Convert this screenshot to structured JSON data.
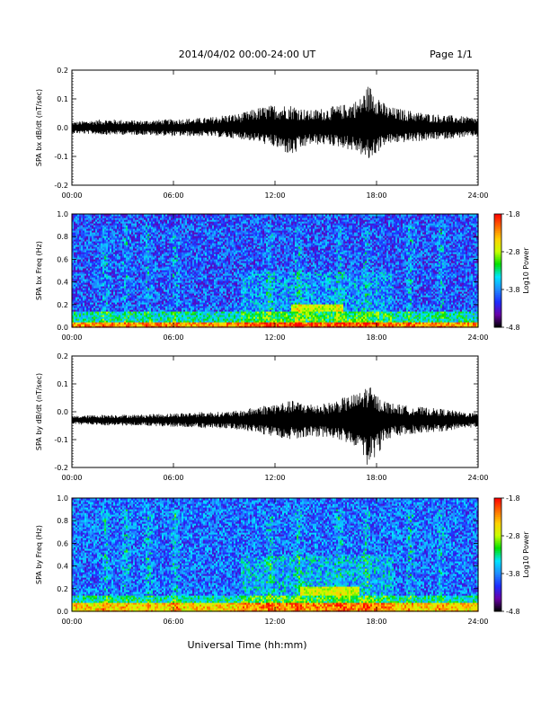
{
  "header": {
    "title": "2014/04/02  00:00-24:00 UT",
    "page": "Page 1/1"
  },
  "xlabel": "Universal Time (hh:mm)",
  "colors": {
    "trace": "#000000",
    "colormap": [
      "#000000",
      "#6a00a8",
      "#1e2dff",
      "#1f8cff",
      "#00e5ff",
      "#00e000",
      "#c8ff00",
      "#ffd000",
      "#ff6a00",
      "#ff0000"
    ]
  },
  "chart_data": [
    {
      "type": "line",
      "id": "bx-dbdt",
      "ylabel": "SPA bx dB/dt (nT/sec)",
      "x_ticks": [
        "00:00",
        "06:00",
        "12:00",
        "18:00",
        "24:00"
      ],
      "xlim": [
        0,
        24
      ],
      "ylim": [
        -0.2,
        0.2
      ],
      "y_ticks": [
        "0.2",
        "0.1",
        "0.0",
        "-0.1",
        "-0.2"
      ],
      "series": [
        {
          "x": [
            0,
            2,
            4,
            6,
            8,
            9,
            10,
            11,
            12,
            13,
            14,
            15,
            16,
            17,
            17.5,
            18,
            18.5,
            19,
            20,
            21,
            22,
            23,
            24
          ],
          "upper": [
            0.02,
            0.03,
            0.025,
            0.03,
            0.035,
            0.045,
            0.05,
            0.07,
            0.08,
            0.08,
            0.06,
            0.07,
            0.08,
            0.1,
            0.15,
            0.13,
            0.08,
            0.07,
            0.06,
            0.05,
            0.045,
            0.04,
            0.035
          ],
          "lower": [
            -0.02,
            -0.025,
            -0.025,
            -0.03,
            -0.03,
            -0.035,
            -0.04,
            -0.05,
            -0.07,
            -0.1,
            -0.06,
            -0.06,
            -0.07,
            -0.09,
            -0.12,
            -0.09,
            -0.06,
            -0.055,
            -0.05,
            -0.045,
            -0.04,
            -0.035,
            -0.03
          ]
        }
      ]
    },
    {
      "type": "heatmap",
      "id": "bx-freq",
      "ylabel": "SPA bx Freq (Hz)",
      "x_ticks": [
        "00:00",
        "06:00",
        "12:00",
        "18:00",
        "24:00"
      ],
      "xlim": [
        0,
        24
      ],
      "ylim": [
        0,
        1.0
      ],
      "y_ticks": [
        "1.0",
        "0.8",
        "0.6",
        "0.4",
        "0.2",
        "0.0"
      ],
      "colorbar": {
        "label": "Log10 Power",
        "range": [
          -4.8,
          -1.8
        ],
        "ticks": [
          "-1.8",
          "-2.8",
          "-3.8",
          "-4.8"
        ]
      },
      "features": {
        "background_level": -4.0,
        "low_freq_band": {
          "freq_max": 0.05,
          "level": -2.3
        },
        "pc_band": {
          "time": [
            13,
            16
          ],
          "freq": [
            0.15,
            0.2
          ],
          "level": -3.0
        },
        "bursts_hours": [
          2.0,
          3.2,
          4.5,
          6.1,
          11.7,
          13.4,
          15.8,
          17.4,
          20.0,
          21.8
        ]
      }
    },
    {
      "type": "line",
      "id": "by-dbdt",
      "ylabel": "SPA by dB/dt (nT/sec)",
      "x_ticks": [
        "00:00",
        "06:00",
        "12:00",
        "18:00",
        "24:00"
      ],
      "xlim": [
        0,
        24
      ],
      "ylim": [
        -0.2,
        0.2
      ],
      "y_ticks": [
        "0.2",
        "0.1",
        "0.0",
        "-0.1",
        "-0.2"
      ],
      "series": [
        {
          "x": [
            0,
            2,
            4,
            6,
            8,
            9,
            10,
            11,
            12,
            13,
            14,
            15,
            16,
            17,
            17.5,
            18,
            18.5,
            19,
            20,
            21,
            22,
            23,
            24
          ],
          "upper": [
            0.015,
            0.02,
            0.02,
            0.025,
            0.03,
            0.03,
            0.035,
            0.05,
            0.06,
            0.07,
            0.06,
            0.06,
            0.08,
            0.1,
            0.13,
            0.09,
            0.07,
            0.06,
            0.05,
            0.045,
            0.04,
            0.03,
            0.025
          ],
          "lower": [
            -0.015,
            -0.02,
            -0.02,
            -0.025,
            -0.03,
            -0.03,
            -0.035,
            -0.05,
            -0.06,
            -0.07,
            -0.06,
            -0.06,
            -0.08,
            -0.1,
            -0.17,
            -0.13,
            -0.08,
            -0.06,
            -0.05,
            -0.045,
            -0.04,
            -0.03,
            -0.025
          ],
          "offset": -0.03
        }
      ]
    },
    {
      "type": "heatmap",
      "id": "by-freq",
      "ylabel": "SPA by Freq (Hz)",
      "x_ticks": [
        "00:00",
        "06:00",
        "12:00",
        "18:00",
        "24:00"
      ],
      "xlim": [
        0,
        24
      ],
      "ylim": [
        0,
        1.0
      ],
      "y_ticks": [
        "1.0",
        "0.8",
        "0.6",
        "0.4",
        "0.2",
        "0.0"
      ],
      "colorbar": {
        "label": "Log10 Power",
        "range": [
          -4.8,
          -1.8
        ],
        "ticks": [
          "-1.8",
          "-2.8",
          "-3.8",
          "-4.8"
        ]
      },
      "features": {
        "background_level": -3.9,
        "low_freq_band": {
          "freq_max": 0.08,
          "level": -2.5
        },
        "pc_band": {
          "time": [
            13.5,
            17
          ],
          "freq": [
            0.15,
            0.22
          ],
          "level": -3.0
        },
        "bursts_hours": [
          2.0,
          3.2,
          4.5,
          6.1,
          11.7,
          13.4,
          15.8,
          17.4,
          20.0,
          21.8
        ]
      }
    }
  ]
}
